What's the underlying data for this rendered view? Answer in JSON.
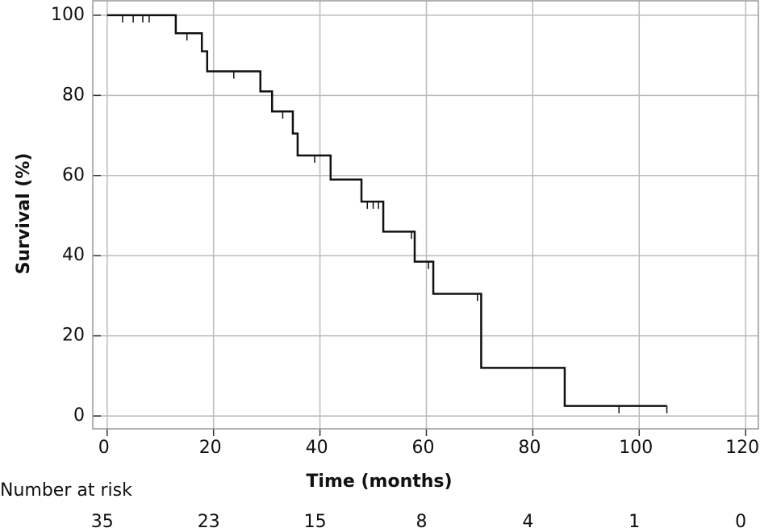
{
  "chart_data": {
    "type": "step",
    "xlabel": "Time (months)",
    "ylabel": "Survival (%)",
    "x": [
      0,
      12.9,
      17.8,
      18.8,
      28.8,
      31,
      34.9,
      35.8,
      42,
      47.8,
      51.9,
      57.8,
      61.3,
      70.3,
      86,
      105.2
    ],
    "values": [
      100,
      95.5,
      91,
      86,
      81,
      76,
      70.5,
      65,
      59,
      53.5,
      46,
      38.5,
      30.5,
      12,
      2.5,
      2.5
    ],
    "censored": {
      "x": [
        2.9,
        4.9,
        6.7,
        7.9,
        15,
        23.8,
        33,
        39,
        48.9,
        50,
        51,
        57.2,
        60.4,
        69.6,
        96.2,
        105.2
      ],
      "values": [
        100,
        100,
        100,
        100,
        95.5,
        86,
        76,
        65,
        53.5,
        53.5,
        53.5,
        46,
        38.5,
        30.5,
        2.5,
        2.5
      ]
    },
    "color": "#111111",
    "xlim": [
      -2.7,
      122.4
    ],
    "ylim": [
      -3.2,
      103.6
    ],
    "xticks": [
      0,
      20,
      40,
      60,
      80,
      100,
      120
    ],
    "yticks": [
      0,
      20,
      40,
      60,
      80,
      100
    ],
    "grid": true,
    "risk_table": {
      "label": "Number at risk",
      "values": [
        35,
        23,
        15,
        8,
        4,
        1,
        0
      ]
    }
  }
}
